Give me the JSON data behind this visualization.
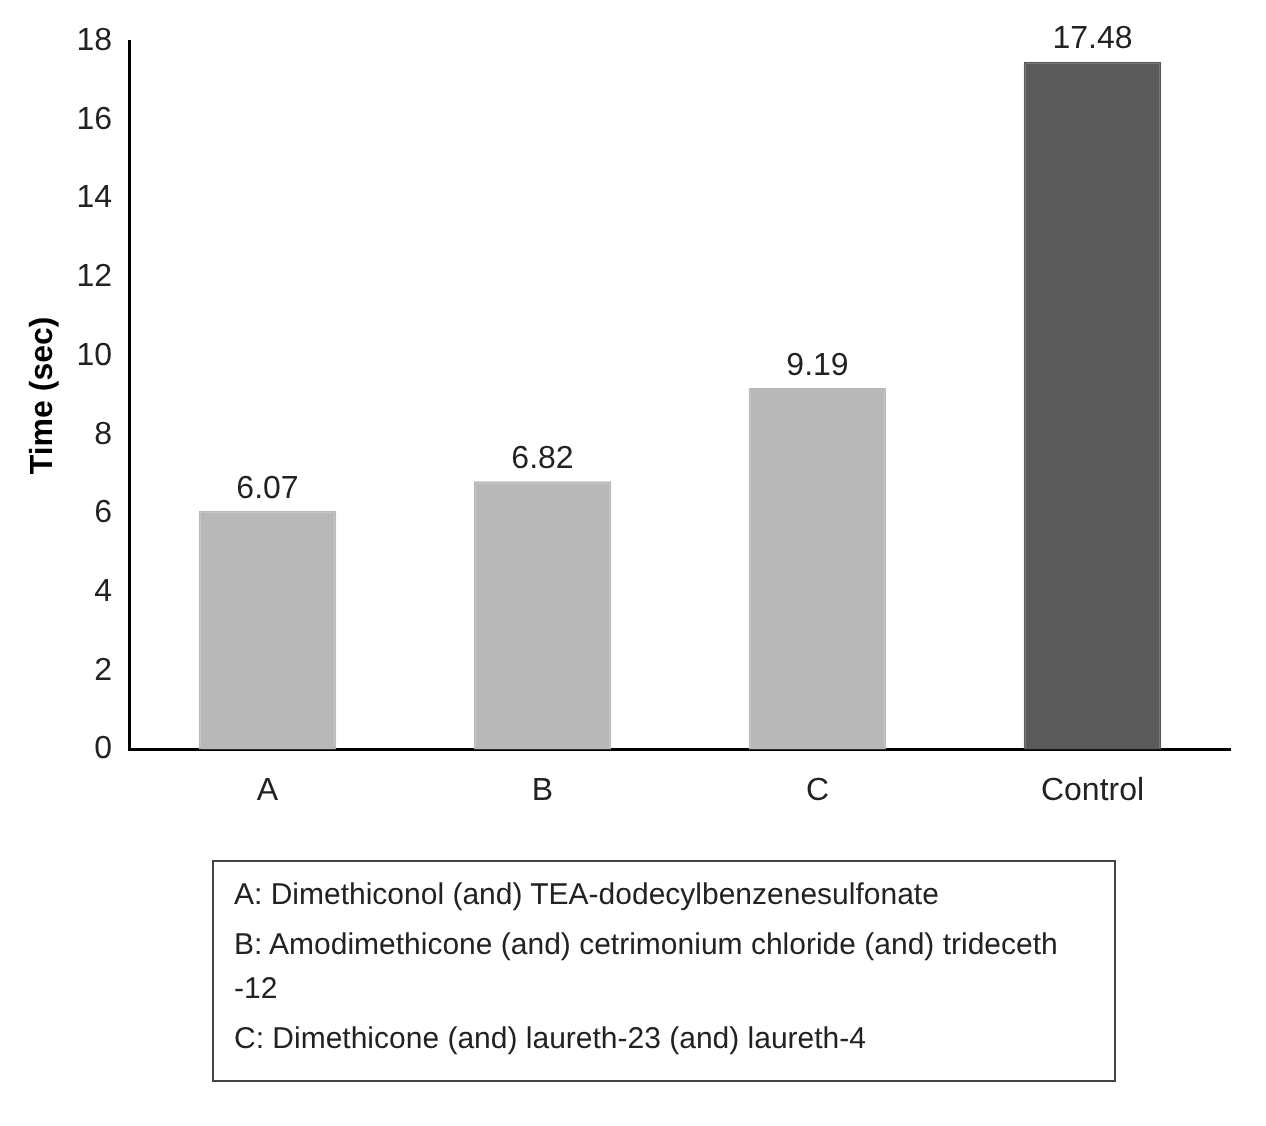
{
  "chart_data": {
    "type": "bar",
    "ylabel": "Time (sec)",
    "categories": [
      "A",
      "B",
      "C",
      "Control"
    ],
    "values": [
      6.07,
      6.82,
      9.19,
      17.48
    ],
    "colors": [
      "#b8b8b8",
      "#b8b8b8",
      "#b8b8b8",
      "#5a5a5a"
    ],
    "ylim": [
      0,
      18
    ],
    "yticks": [
      0,
      2,
      4,
      6,
      8,
      10,
      12,
      14,
      16,
      18
    ],
    "data_labels": true,
    "annotations": [
      "A: Dimethiconol (and) TEA-dodecylbenzenesulfonate",
      "B: Amodimethicone (and) cetrimonium chloride (and) trideceth -12",
      "C: Dimethicone (and) laureth-23 (and) laureth-4"
    ]
  }
}
